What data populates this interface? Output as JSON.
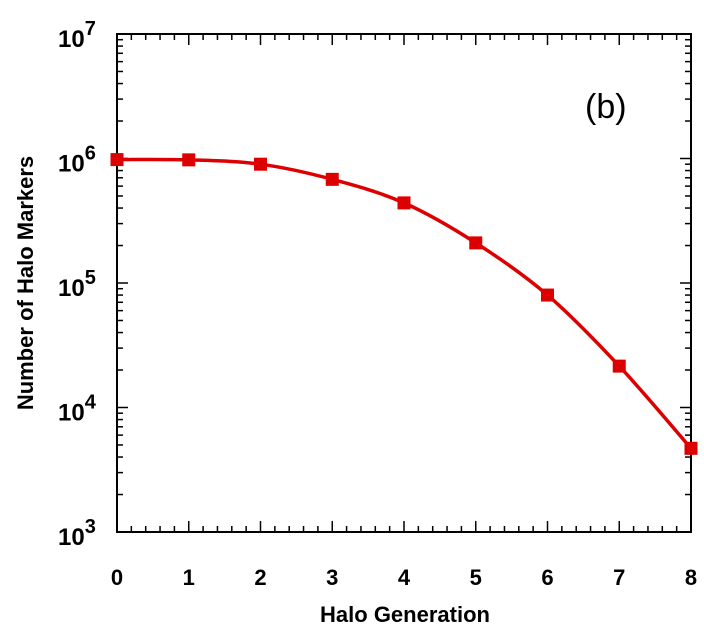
{
  "chart_data": {
    "type": "line",
    "title": "",
    "annotation": "(b)",
    "xlabel": "Halo Generation",
    "ylabel": "Number of Halo  Markers",
    "yscale": "log",
    "xlim": [
      0,
      8
    ],
    "ylim": [
      1000,
      10000000
    ],
    "x_ticks": [
      "0",
      "1",
      "2",
      "3",
      "4",
      "5",
      "6",
      "7",
      "8"
    ],
    "y_ticks": [
      {
        "base": "10",
        "exp": "3"
      },
      {
        "base": "10",
        "exp": "4"
      },
      {
        "base": "10",
        "exp": "5"
      },
      {
        "base": "10",
        "exp": "6"
      },
      {
        "base": "10",
        "exp": "7"
      }
    ],
    "grid": false,
    "series": [
      {
        "color": "#dd0000",
        "marker": "square",
        "x": [
          0,
          1,
          2,
          3,
          4,
          5,
          6,
          7,
          8
        ],
        "y": [
          980000,
          975000,
          900000,
          680000,
          440000,
          210000,
          80000,
          21500,
          4700
        ]
      }
    ]
  }
}
